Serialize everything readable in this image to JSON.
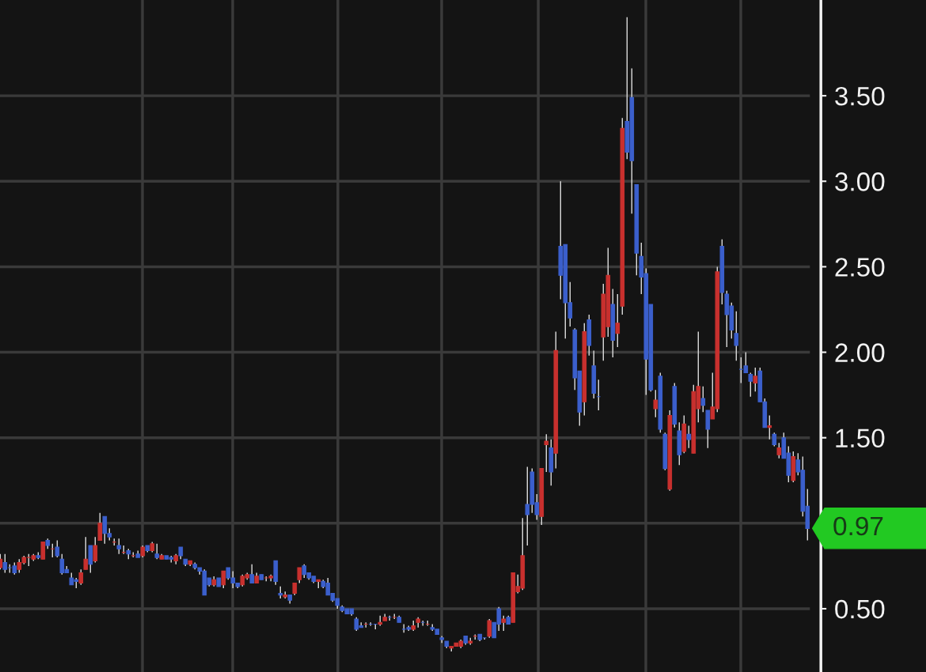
{
  "chart_data": {
    "type": "candlestick",
    "categories": [
      null,
      null,
      null,
      null,
      null,
      null,
      null,
      null,
      null,
      null,
      null,
      null,
      null,
      null,
      null,
      null,
      null,
      null,
      null,
      null,
      null,
      null,
      null,
      null,
      null,
      null,
      null,
      null,
      null,
      null,
      null,
      null,
      null,
      null,
      null,
      null,
      null,
      null,
      null,
      null,
      null,
      null,
      null,
      null,
      null,
      null,
      null,
      null,
      null,
      null,
      null,
      null,
      null,
      null,
      null,
      null,
      null,
      null,
      null,
      null,
      null,
      null,
      null,
      null,
      null,
      null,
      null,
      null,
      null,
      null,
      null,
      null,
      null,
      null,
      null,
      null,
      null,
      null,
      null,
      null,
      null,
      null,
      null,
      null,
      null,
      null,
      null,
      null,
      null,
      null,
      null,
      null,
      null,
      null,
      null,
      null,
      null,
      null,
      null,
      null,
      null,
      null,
      null,
      null,
      null,
      null,
      null,
      null,
      null,
      null,
      null,
      null,
      null,
      null,
      null,
      null,
      null,
      null,
      null,
      null,
      null,
      null,
      null,
      null,
      null,
      null,
      null,
      null,
      null,
      null,
      null,
      null,
      null,
      null,
      null,
      null,
      null,
      null,
      null,
      null,
      null,
      null,
      null,
      null,
      null,
      null,
      null,
      null,
      null,
      null,
      null,
      null,
      null,
      null,
      null,
      null,
      null,
      null,
      null,
      null,
      null,
      null,
      null,
      null,
      null,
      null,
      null,
      null,
      null,
      null,
      null
    ],
    "ohlc": [
      [
        0.74,
        0.82,
        0.73,
        0.79
      ],
      [
        0.77,
        0.82,
        0.71,
        0.73
      ],
      [
        0.74,
        0.76,
        0.71,
        0.74
      ],
      [
        0.75,
        0.77,
        0.7,
        0.71
      ],
      [
        0.73,
        0.79,
        0.71,
        0.77
      ],
      [
        0.77,
        0.81,
        0.76,
        0.8
      ],
      [
        0.8,
        0.82,
        0.75,
        0.8
      ],
      [
        0.79,
        0.82,
        0.78,
        0.81
      ],
      [
        0.81,
        0.83,
        0.79,
        0.8
      ],
      [
        0.79,
        0.89,
        0.79,
        0.89
      ],
      [
        0.9,
        0.91,
        0.85,
        0.87
      ],
      [
        0.85,
        0.88,
        0.8,
        0.85
      ],
      [
        0.86,
        0.9,
        0.8,
        0.81
      ],
      [
        0.79,
        0.82,
        0.7,
        0.71
      ],
      [
        0.73,
        0.75,
        0.71,
        0.71
      ],
      [
        0.68,
        0.71,
        0.64,
        0.64
      ],
      [
        0.67,
        0.68,
        0.62,
        0.66
      ],
      [
        0.65,
        0.73,
        0.64,
        0.71
      ],
      [
        0.73,
        0.92,
        0.73,
        0.79
      ],
      [
        0.87,
        0.87,
        0.71,
        0.76
      ],
      [
        0.78,
        0.92,
        0.77,
        0.87
      ],
      [
        0.9,
        1.06,
        0.9,
        1.0
      ],
      [
        1.04,
        1.04,
        0.88,
        0.94
      ],
      [
        0.94,
        0.97,
        0.9,
        0.92
      ],
      [
        0.89,
        0.91,
        0.87,
        0.89
      ],
      [
        0.87,
        0.91,
        0.82,
        0.85
      ],
      [
        0.83,
        0.87,
        0.82,
        0.83
      ],
      [
        0.84,
        0.85,
        0.79,
        0.82
      ],
      [
        0.81,
        0.83,
        0.8,
        0.81
      ],
      [
        0.82,
        0.84,
        0.8,
        0.8
      ],
      [
        0.81,
        0.87,
        0.8,
        0.86
      ],
      [
        0.87,
        0.87,
        0.83,
        0.84
      ],
      [
        0.84,
        0.89,
        0.83,
        0.88
      ],
      [
        0.82,
        0.88,
        0.79,
        0.8
      ],
      [
        0.79,
        0.82,
        0.79,
        0.81
      ],
      [
        0.81,
        0.81,
        0.79,
        0.79
      ],
      [
        0.8,
        0.81,
        0.77,
        0.79
      ],
      [
        0.78,
        0.82,
        0.76,
        0.81
      ],
      [
        0.86,
        0.86,
        0.79,
        0.81
      ],
      [
        0.79,
        0.79,
        0.75,
        0.76
      ],
      [
        0.76,
        0.78,
        0.75,
        0.78
      ],
      [
        0.76,
        0.77,
        0.73,
        0.74
      ],
      [
        0.74,
        0.74,
        0.7,
        0.72
      ],
      [
        0.72,
        0.73,
        0.58,
        0.58
      ],
      [
        0.68,
        0.68,
        0.63,
        0.64
      ],
      [
        0.64,
        0.69,
        0.63,
        0.67
      ],
      [
        0.68,
        0.68,
        0.63,
        0.63
      ],
      [
        0.64,
        0.72,
        0.62,
        0.72
      ],
      [
        0.74,
        0.74,
        0.67,
        0.68
      ],
      [
        0.68,
        0.72,
        0.62,
        0.65
      ],
      [
        0.65,
        0.65,
        0.62,
        0.63
      ],
      [
        0.64,
        0.7,
        0.63,
        0.69
      ],
      [
        0.68,
        0.71,
        0.67,
        0.7
      ],
      [
        0.7,
        0.76,
        0.65,
        0.65
      ],
      [
        0.65,
        0.71,
        0.65,
        0.69
      ],
      [
        0.7,
        0.7,
        0.67,
        0.67
      ],
      [
        0.68,
        0.69,
        0.66,
        0.68
      ],
      [
        0.68,
        0.7,
        0.66,
        0.69
      ],
      [
        0.78,
        0.78,
        0.64,
        0.66
      ],
      [
        0.59,
        0.63,
        0.56,
        0.58
      ],
      [
        0.57,
        0.6,
        0.56,
        0.58
      ],
      [
        0.58,
        0.58,
        0.53,
        0.55
      ],
      [
        0.59,
        0.65,
        0.58,
        0.65
      ],
      [
        0.67,
        0.74,
        0.65,
        0.74
      ],
      [
        0.75,
        0.76,
        0.68,
        0.7
      ],
      [
        0.71,
        0.71,
        0.67,
        0.68
      ],
      [
        0.69,
        0.69,
        0.65,
        0.66
      ],
      [
        0.66,
        0.67,
        0.62,
        0.67
      ],
      [
        0.66,
        0.67,
        0.62,
        0.63
      ],
      [
        0.65,
        0.68,
        0.58,
        0.58
      ],
      [
        0.59,
        0.59,
        0.54,
        0.55
      ],
      [
        0.56,
        0.56,
        0.5,
        0.52
      ],
      [
        0.51,
        0.52,
        0.48,
        0.49
      ],
      [
        0.5,
        0.5,
        0.47,
        0.47
      ],
      [
        0.5,
        0.5,
        0.46,
        0.47
      ],
      [
        0.44,
        0.45,
        0.37,
        0.38
      ],
      [
        0.4,
        0.42,
        0.39,
        0.39
      ],
      [
        0.41,
        0.42,
        0.39,
        0.41
      ],
      [
        0.41,
        0.42,
        0.4,
        0.41
      ],
      [
        0.41,
        0.41,
        0.38,
        0.41
      ],
      [
        0.41,
        0.46,
        0.4,
        0.42
      ],
      [
        0.43,
        0.47,
        0.43,
        0.45
      ],
      [
        0.45,
        0.46,
        0.43,
        0.45
      ],
      [
        0.45,
        0.47,
        0.44,
        0.45
      ],
      [
        0.45,
        0.46,
        0.42,
        0.42
      ],
      [
        0.38,
        0.41,
        0.36,
        0.38
      ],
      [
        0.39,
        0.4,
        0.37,
        0.38
      ],
      [
        0.38,
        0.43,
        0.37,
        0.4
      ],
      [
        0.42,
        0.45,
        0.39,
        0.44
      ],
      [
        0.42,
        0.43,
        0.4,
        0.42
      ],
      [
        0.41,
        0.43,
        0.4,
        0.41
      ],
      [
        0.39,
        0.41,
        0.37,
        0.38
      ],
      [
        0.38,
        0.38,
        0.35,
        0.35
      ],
      [
        0.33,
        0.34,
        0.3,
        0.32
      ],
      [
        0.31,
        0.31,
        0.27,
        0.28
      ],
      [
        0.27,
        0.28,
        0.25,
        0.28
      ],
      [
        0.28,
        0.3,
        0.28,
        0.3
      ],
      [
        0.28,
        0.32,
        0.27,
        0.31
      ],
      [
        0.34,
        0.34,
        0.29,
        0.3
      ],
      [
        0.3,
        0.33,
        0.29,
        0.31
      ],
      [
        0.34,
        0.35,
        0.32,
        0.34
      ],
      [
        0.35,
        0.35,
        0.31,
        0.32
      ],
      [
        0.33,
        0.33,
        0.32,
        0.33
      ],
      [
        0.34,
        0.44,
        0.33,
        0.43
      ],
      [
        0.42,
        0.42,
        0.33,
        0.33
      ],
      [
        0.5,
        0.51,
        0.37,
        0.41
      ],
      [
        0.42,
        0.46,
        0.37,
        0.44
      ],
      [
        0.45,
        0.46,
        0.41,
        0.41
      ],
      [
        0.42,
        0.71,
        0.42,
        0.71
      ],
      [
        0.6,
        0.7,
        0.59,
        0.63
      ],
      [
        0.62,
        1.03,
        0.61,
        0.81
      ],
      [
        1.11,
        1.33,
        0.87,
        1.05
      ],
      [
        1.3,
        1.32,
        1.06,
        1.11
      ],
      [
        1.12,
        1.17,
        1.02,
        1.05
      ],
      [
        1.04,
        1.32,
        0.99,
        1.32
      ],
      [
        1.46,
        1.52,
        1.3,
        1.48
      ],
      [
        1.44,
        1.49,
        1.22,
        1.3
      ],
      [
        1.41,
        2.12,
        1.32,
        2.01
      ],
      [
        2.62,
        3.0,
        2.31,
        2.45
      ],
      [
        2.63,
        2.63,
        2.08,
        2.29
      ],
      [
        2.29,
        2.41,
        2.15,
        2.2
      ],
      [
        2.13,
        2.14,
        1.78,
        1.85
      ],
      [
        1.89,
        1.89,
        1.57,
        1.65
      ],
      [
        1.71,
        2.17,
        1.63,
        2.12
      ],
      [
        2.19,
        2.22,
        1.98,
        2.04
      ],
      [
        1.92,
        2.01,
        1.73,
        1.76
      ],
      [
        1.74,
        1.84,
        1.66,
        1.74
      ],
      [
        2.09,
        2.4,
        1.95,
        2.34
      ],
      [
        2.15,
        2.61,
        2.09,
        2.45
      ],
      [
        2.28,
        2.37,
        1.97,
        2.07
      ],
      [
        2.11,
        2.34,
        2.03,
        2.17
      ],
      [
        2.27,
        3.37,
        2.22,
        3.31
      ],
      [
        3.35,
        3.96,
        3.13,
        3.17
      ],
      [
        3.49,
        3.66,
        2.81,
        3.12
      ],
      [
        2.98,
        2.98,
        2.45,
        2.58
      ],
      [
        2.56,
        2.64,
        2.34,
        2.44
      ],
      [
        2.46,
        2.49,
        1.75,
        1.96
      ],
      [
        2.28,
        2.28,
        1.77,
        1.78
      ],
      [
        1.67,
        1.78,
        1.62,
        1.72
      ],
      [
        1.86,
        1.88,
        1.53,
        1.55
      ],
      [
        1.52,
        1.53,
        1.31,
        1.32
      ],
      [
        1.2,
        1.66,
        1.19,
        1.63
      ],
      [
        1.8,
        1.82,
        1.56,
        1.58
      ],
      [
        1.54,
        1.59,
        1.34,
        1.4
      ],
      [
        1.42,
        1.63,
        1.41,
        1.58
      ],
      [
        1.52,
        1.57,
        1.44,
        1.49
      ],
      [
        1.41,
        1.81,
        1.41,
        1.77
      ],
      [
        1.67,
        2.12,
        1.59,
        1.8
      ],
      [
        1.73,
        1.8,
        1.65,
        1.69
      ],
      [
        1.66,
        1.66,
        1.44,
        1.55
      ],
      [
        1.61,
        1.88,
        1.61,
        1.68
      ],
      [
        1.67,
        2.5,
        1.65,
        2.47
      ],
      [
        2.62,
        2.66,
        2.28,
        2.35
      ],
      [
        2.34,
        2.36,
        2.03,
        2.22
      ],
      [
        2.27,
        2.29,
        2.08,
        2.13
      ],
      [
        2.11,
        2.24,
        1.95,
        2.04
      ],
      [
        1.9,
        1.97,
        1.82,
        1.9
      ],
      [
        1.92,
        2.0,
        1.88,
        1.88
      ],
      [
        1.87,
        1.88,
        1.74,
        1.83
      ],
      [
        1.82,
        1.91,
        1.77,
        1.86
      ],
      [
        1.89,
        1.91,
        1.71,
        1.71
      ],
      [
        1.71,
        1.73,
        1.56,
        1.56
      ],
      [
        1.56,
        1.63,
        1.49,
        1.57
      ],
      [
        1.52,
        1.53,
        1.45,
        1.46
      ],
      [
        1.4,
        1.47,
        1.38,
        1.44
      ],
      [
        1.5,
        1.53,
        1.38,
        1.38
      ],
      [
        1.41,
        1.45,
        1.24,
        1.28
      ],
      [
        1.25,
        1.42,
        1.24,
        1.39
      ],
      [
        1.37,
        1.41,
        1.28,
        1.3
      ],
      [
        1.31,
        1.39,
        1.04,
        1.07
      ],
      [
        1.1,
        1.2,
        0.9,
        0.97
      ]
    ],
    "colors": [
      "#c8302e",
      "#3b5fcc",
      "#3b5fcc",
      "#3b5fcc",
      "#c8302e",
      "#c8302e",
      "#c8302e",
      "#c8302e",
      "#3b5fcc",
      "#c8302e",
      "#3b5fcc",
      "#c8302e",
      "#3b5fcc",
      "#3b5fcc",
      "#3b5fcc",
      "#3b5fcc",
      "#3b5fcc",
      "#c8302e",
      "#c8302e",
      "#3b5fcc",
      "#c8302e",
      "#c8302e",
      "#3b5fcc",
      "#3b5fcc",
      "#c8302e",
      "#3b5fcc",
      "#c8302e",
      "#3b5fcc",
      "#c8302e",
      "#3b5fcc",
      "#c8302e",
      "#3b5fcc",
      "#c8302e",
      "#3b5fcc",
      "#c8302e",
      "#3b5fcc",
      "#3b5fcc",
      "#c8302e",
      "#3b5fcc",
      "#3b5fcc",
      "#c8302e",
      "#3b5fcc",
      "#3b5fcc",
      "#3b5fcc",
      "#3b5fcc",
      "#c8302e",
      "#3b5fcc",
      "#c8302e",
      "#3b5fcc",
      "#3b5fcc",
      "#3b5fcc",
      "#c8302e",
      "#c8302e",
      "#3b5fcc",
      "#c8302e",
      "#3b5fcc",
      "#c8302e",
      "#c8302e",
      "#3b5fcc",
      "#3b5fcc",
      "#c8302e",
      "#3b5fcc",
      "#c8302e",
      "#c8302e",
      "#3b5fcc",
      "#3b5fcc",
      "#3b5fcc",
      "#c8302e",
      "#3b5fcc",
      "#3b5fcc",
      "#3b5fcc",
      "#3b5fcc",
      "#3b5fcc",
      "#3b5fcc",
      "#3b5fcc",
      "#3b5fcc",
      "#3b5fcc",
      "#c8302e",
      "#3b5fcc",
      "#3b5fcc",
      "#c8302e",
      "#c8302e",
      "#3b5fcc",
      "#c8302e",
      "#3b5fcc",
      "#3b5fcc",
      "#3b5fcc",
      "#c8302e",
      "#c8302e",
      "#3b5fcc",
      "#c8302e",
      "#3b5fcc",
      "#3b5fcc",
      "#3b5fcc",
      "#3b5fcc",
      "#c8302e",
      "#c8302e",
      "#c8302e",
      "#3b5fcc",
      "#c8302e",
      "#c8302e",
      "#3b5fcc",
      "#3b5fcc",
      "#c8302e",
      "#3b5fcc",
      "#3b5fcc",
      "#c8302e",
      "#3b5fcc",
      "#c8302e",
      "#c8302e",
      "#c8302e",
      "#3b5fcc",
      "#3b5fcc",
      "#3b5fcc",
      "#c8302e",
      "#c8302e",
      "#3b5fcc",
      "#c8302e",
      "#3b5fcc",
      "#3b5fcc",
      "#3b5fcc",
      "#3b5fcc",
      "#3b5fcc",
      "#c8302e",
      "#3b5fcc",
      "#3b5fcc",
      "#3b5fcc",
      "#c8302e",
      "#c8302e",
      "#3b5fcc",
      "#c8302e",
      "#c8302e",
      "#3b5fcc",
      "#3b5fcc",
      "#3b5fcc",
      "#3b5fcc",
      "#3b5fcc",
      "#3b5fcc",
      "#c8302e",
      "#3b5fcc",
      "#3b5fcc",
      "#c8302e",
      "#3b5fcc",
      "#3b5fcc",
      "#c8302e",
      "#3b5fcc",
      "#c8302e",
      "#c8302e",
      "#3b5fcc",
      "#3b5fcc",
      "#c8302e",
      "#c8302e",
      "#3b5fcc",
      "#3b5fcc",
      "#3b5fcc",
      "#3b5fcc",
      "#3b5fcc",
      "#3b5fcc",
      "#3b5fcc",
      "#c8302e",
      "#3b5fcc",
      "#3b5fcc",
      "#c8302e",
      "#3b5fcc",
      "#c8302e",
      "#3b5fcc",
      "#3b5fcc",
      "#c8302e",
      "#3b5fcc",
      "#3b5fcc",
      "#3b5fcc"
    ],
    "ylim": [
      0.13,
      4.06
    ],
    "yticks": [
      {
        "value": 0.5,
        "label": "0.50"
      },
      {
        "value": 1.0,
        "label": null
      },
      {
        "value": 1.5,
        "label": "1.50"
      },
      {
        "value": 2.0,
        "label": "2.00"
      },
      {
        "value": 2.5,
        "label": "2.50"
      },
      {
        "value": 3.0,
        "label": "3.00"
      },
      {
        "value": 3.5,
        "label": "3.50"
      }
    ],
    "grid": "y",
    "tick_labels": "y",
    "annotations": [
      "0.97"
    ]
  }
}
